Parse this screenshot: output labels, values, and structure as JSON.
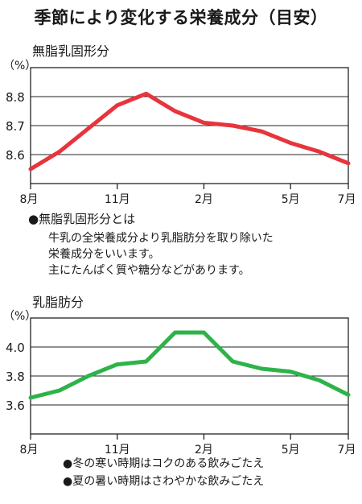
{
  "page": {
    "title": "季節により変化する栄養成分（目安）"
  },
  "snf": {
    "note_heading": "●無脂乳固形分とは",
    "note_lines": [
      "牛乳の全栄養成分より乳脂肪分を取り除いた",
      "栄養成分をいいます。",
      "主にたんぱく質や糖分などがあります。"
    ]
  },
  "fat": {
    "notes": [
      "●冬の寒い時期はコクのある飲みごたえ",
      "●夏の暑い時期はさわやかな飲みごたえ"
    ]
  },
  "chart_data": [
    {
      "type": "line",
      "title": "無脂乳固形分",
      "ylabel": "（%）",
      "color": "#e8343c",
      "ylim": [
        8.5,
        8.9
      ],
      "yticks": [
        8.6,
        8.7,
        8.8
      ],
      "x": [
        0,
        1,
        2,
        3,
        4,
        5,
        6,
        7,
        8,
        9,
        10,
        11
      ],
      "xlim": [
        0,
        11
      ],
      "xtick_positions": [
        0,
        3,
        6,
        9,
        11
      ],
      "xtick_labels": [
        "8月",
        "11月",
        "2月",
        "5月",
        "7月"
      ],
      "series": [
        {
          "values": [
            8.55,
            8.61,
            8.69,
            8.77,
            8.81,
            8.75,
            8.71,
            8.7,
            8.68,
            8.64,
            8.61,
            8.57
          ]
        }
      ],
      "grid": "horizontal"
    },
    {
      "type": "line",
      "title": "乳脂肪分",
      "ylabel": "（%）",
      "color": "#2db34a",
      "ylim": [
        3.4,
        4.2
      ],
      "yticks": [
        3.6,
        3.8,
        4.0
      ],
      "x": [
        0,
        1,
        2,
        3,
        4,
        5,
        6,
        7,
        8,
        9,
        10,
        11
      ],
      "xlim": [
        0,
        11
      ],
      "xtick_positions": [
        0,
        3,
        6,
        9,
        11
      ],
      "xtick_labels": [
        "8月",
        "11月",
        "2月",
        "5月",
        "7月"
      ],
      "series": [
        {
          "values": [
            3.65,
            3.7,
            3.8,
            3.88,
            3.9,
            4.1,
            4.1,
            3.9,
            3.85,
            3.83,
            3.77,
            3.67
          ]
        }
      ],
      "grid": "horizontal"
    }
  ]
}
